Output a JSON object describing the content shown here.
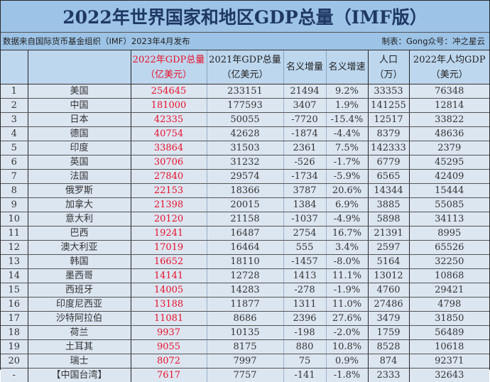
{
  "title": "2022年世界国家和地区GDP总量（IMF版）",
  "subtitle": {
    "source": "数据来自国际货币基金组织（IMF）2023年4月发布",
    "author": "制表：Gong众号：冲之星云"
  },
  "colors": {
    "title_bg": "#9dc3e6",
    "header_bg": "#bdd7ee",
    "body_bg": "#dce6f1",
    "title_text": "#1f3864",
    "highlight_red": "#e8102a"
  },
  "headers": [
    {
      "line1": "",
      "line2": ""
    },
    {
      "line1": "",
      "line2": ""
    },
    {
      "line1": "2022年GDP总量",
      "line2": "（亿美元）"
    },
    {
      "line1": "2021年GDP总量",
      "line2": "（亿美元）"
    },
    {
      "line1": "名义增量",
      "line2": ""
    },
    {
      "line1": "名义增速",
      "line2": ""
    },
    {
      "line1": "人口",
      "line2": "（万）"
    },
    {
      "line1": "2022年人均GDP",
      "line2": "（美元）"
    }
  ],
  "rows": [
    {
      "rank": "1",
      "name": "美国",
      "gdp2022": "254645",
      "gdp2021": "233151",
      "inc": "21494",
      "rate": "9.2%",
      "pop": "33353",
      "pc": "76348"
    },
    {
      "rank": "2",
      "name": "中国",
      "gdp2022": "181000",
      "gdp2021": "177593",
      "inc": "3407",
      "rate": "1.9%",
      "pop": "141255",
      "pc": "12814"
    },
    {
      "rank": "3",
      "name": "日本",
      "gdp2022": "42335",
      "gdp2021": "50055",
      "inc": "-7720",
      "rate": "-15.4%",
      "pop": "12517",
      "pc": "33822"
    },
    {
      "rank": "4",
      "name": "德国",
      "gdp2022": "40754",
      "gdp2021": "42628",
      "inc": "-1874",
      "rate": "-4.4%",
      "pop": "8379",
      "pc": "48636"
    },
    {
      "rank": "5",
      "name": "印度",
      "gdp2022": "33864",
      "gdp2021": "31503",
      "inc": "2361",
      "rate": "7.5%",
      "pop": "142333",
      "pc": "2379"
    },
    {
      "rank": "6",
      "name": "英国",
      "gdp2022": "30706",
      "gdp2021": "31232",
      "inc": "-526",
      "rate": "-1.7%",
      "pop": "6779",
      "pc": "45295"
    },
    {
      "rank": "7",
      "name": "法国",
      "gdp2022": "27840",
      "gdp2021": "29574",
      "inc": "-1734",
      "rate": "-5.9%",
      "pop": "6565",
      "pc": "42409"
    },
    {
      "rank": "8",
      "name": "俄罗斯",
      "gdp2022": "22153",
      "gdp2021": "18366",
      "inc": "3787",
      "rate": "20.6%",
      "pop": "14344",
      "pc": "15444"
    },
    {
      "rank": "9",
      "name": "加拿大",
      "gdp2022": "21398",
      "gdp2021": "20015",
      "inc": "1384",
      "rate": "6.9%",
      "pop": "3885",
      "pc": "55085"
    },
    {
      "rank": "10",
      "name": "意大利",
      "gdp2022": "20120",
      "gdp2021": "21158",
      "inc": "-1037",
      "rate": "-4.9%",
      "pop": "5898",
      "pc": "34113"
    },
    {
      "rank": "11",
      "name": "巴西",
      "gdp2022": "19241",
      "gdp2021": "16487",
      "inc": "2754",
      "rate": "16.7%",
      "pop": "21391",
      "pc": "8995"
    },
    {
      "rank": "12",
      "name": "澳大利亚",
      "gdp2022": "17019",
      "gdp2021": "16464",
      "inc": "555",
      "rate": "3.4%",
      "pop": "2597",
      "pc": "65526"
    },
    {
      "rank": "13",
      "name": "韩国",
      "gdp2022": "16652",
      "gdp2021": "18110",
      "inc": "-1457",
      "rate": "-8.0%",
      "pop": "5164",
      "pc": "32250"
    },
    {
      "rank": "14",
      "name": "墨西哥",
      "gdp2022": "14141",
      "gdp2021": "12728",
      "inc": "1413",
      "rate": "11.1%",
      "pop": "13012",
      "pc": "10868"
    },
    {
      "rank": "15",
      "name": "西班牙",
      "gdp2022": "14005",
      "gdp2021": "14283",
      "inc": "-278",
      "rate": "-1.9%",
      "pop": "4760",
      "pc": "29421"
    },
    {
      "rank": "16",
      "name": "印度尼西亚",
      "gdp2022": "13188",
      "gdp2021": "11877",
      "inc": "1311",
      "rate": "11.0%",
      "pop": "27486",
      "pc": "4798"
    },
    {
      "rank": "17",
      "name": "沙特阿拉伯",
      "gdp2022": "11081",
      "gdp2021": "8686",
      "inc": "2396",
      "rate": "27.6%",
      "pop": "3479",
      "pc": "31850"
    },
    {
      "rank": "18",
      "name": "荷兰",
      "gdp2022": "9937",
      "gdp2021": "10135",
      "inc": "-198",
      "rate": "-2.0%",
      "pop": "1759",
      "pc": "56489"
    },
    {
      "rank": "19",
      "name": "土耳其",
      "gdp2022": "9055",
      "gdp2021": "8175",
      "inc": "880",
      "rate": "10.8%",
      "pop": "8528",
      "pc": "10618"
    },
    {
      "rank": "20",
      "name": "瑞士",
      "gdp2022": "8072",
      "gdp2021": "7997",
      "inc": "75",
      "rate": "0.9%",
      "pop": "874",
      "pc": "92371"
    },
    {
      "rank": "-",
      "name": "【中国台湾】",
      "gdp2022": "7617",
      "gdp2021": "7757",
      "inc": "-141",
      "rate": "-1.8%",
      "pop": "2333",
      "pc": "32643"
    }
  ]
}
